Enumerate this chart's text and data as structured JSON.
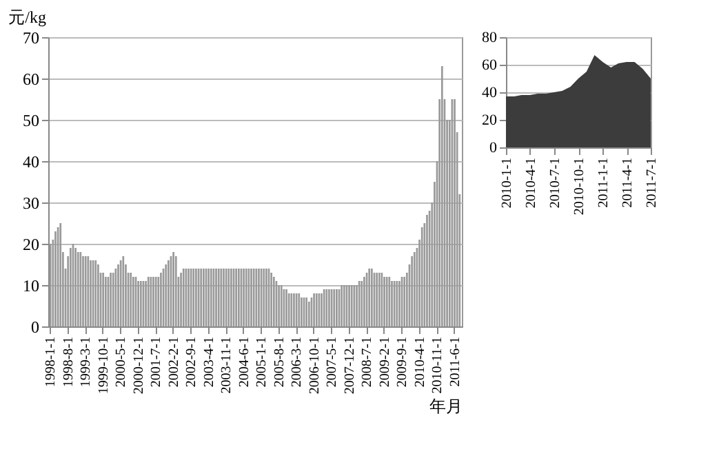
{
  "chart_data": [
    {
      "type": "bar",
      "ylabel": "元/kg",
      "xlabel": "年月",
      "color": "#9a9a9a",
      "ylim": [
        0,
        70
      ],
      "yticks": [
        0,
        10,
        20,
        30,
        40,
        50,
        60,
        70
      ],
      "grid": "y",
      "categories": [
        "1998-1-1",
        null,
        null,
        null,
        null,
        null,
        null,
        "1998-8-1",
        null,
        null,
        null,
        null,
        null,
        null,
        "1999-3-1",
        null,
        null,
        null,
        null,
        null,
        null,
        "1999-10-1",
        null,
        null,
        null,
        null,
        null,
        null,
        "2000-5-1",
        null,
        null,
        null,
        null,
        null,
        null,
        "2000-12-1",
        null,
        null,
        null,
        null,
        null,
        null,
        "2001-7-1",
        null,
        null,
        null,
        null,
        null,
        null,
        "2002-2-1",
        null,
        null,
        null,
        null,
        null,
        null,
        "2002-9-1",
        null,
        null,
        null,
        null,
        null,
        null,
        "2003-4-1",
        null,
        null,
        null,
        null,
        null,
        null,
        "2003-11-1",
        null,
        null,
        null,
        null,
        null,
        null,
        "2004-6-1",
        null,
        null,
        null,
        null,
        null,
        null,
        "2005-1-1",
        null,
        null,
        null,
        null,
        null,
        null,
        "2005-8-1",
        null,
        null,
        null,
        null,
        null,
        null,
        "2006-3-1",
        null,
        null,
        null,
        null,
        null,
        null,
        "2006-10-1",
        null,
        null,
        null,
        null,
        null,
        null,
        "2007-5-1",
        null,
        null,
        null,
        null,
        null,
        null,
        "2007-12-1",
        null,
        null,
        null,
        null,
        null,
        null,
        "2008-7-1",
        null,
        null,
        null,
        null,
        null,
        null,
        "2009-2-1",
        null,
        null,
        null,
        null,
        null,
        null,
        "2009-9-1",
        null,
        null,
        null,
        null,
        null,
        null,
        "2010-4-1",
        null,
        null,
        null,
        null,
        null,
        null,
        "2010-11-1",
        null,
        null,
        null,
        null,
        null,
        null,
        "2011-6-1",
        null,
        null
      ],
      "values": [
        20,
        21,
        23,
        24,
        25,
        18,
        14,
        17,
        19,
        20,
        19,
        18,
        18,
        17,
        17,
        17,
        16,
        16,
        16,
        15,
        13,
        13,
        12,
        12,
        13,
        13,
        14,
        15,
        16,
        17,
        15,
        13,
        13,
        12,
        12,
        11,
        11,
        11,
        11,
        12,
        12,
        12,
        12,
        12,
        13,
        14,
        15,
        16,
        17,
        18,
        17,
        12,
        13,
        14,
        14,
        14,
        14,
        14,
        14,
        14,
        14,
        14,
        14,
        14,
        14,
        14,
        14,
        14,
        14,
        14,
        14,
        14,
        14,
        14,
        14,
        14,
        14,
        14,
        14,
        14,
        14,
        14,
        14,
        14,
        14,
        14,
        14,
        14,
        13,
        12,
        11,
        10,
        10,
        9,
        9,
        8,
        8,
        8,
        8,
        8,
        7,
        7,
        7,
        6,
        7,
        8,
        8,
        8,
        8,
        9,
        9,
        9,
        9,
        9,
        9,
        9,
        10,
        10,
        10,
        10,
        10,
        10,
        10,
        11,
        11,
        12,
        13,
        14,
        14,
        13,
        13,
        13,
        13,
        12,
        12,
        12,
        11,
        11,
        11,
        11,
        12,
        12,
        13,
        15,
        17,
        18,
        19,
        21,
        24,
        25,
        27,
        28,
        30,
        35,
        40,
        55,
        63,
        55,
        50,
        50,
        55,
        55,
        47,
        32
      ]
    },
    {
      "type": "area",
      "color": "#3c3c3c",
      "ylim": [
        0,
        80
      ],
      "yticks": [
        0,
        20,
        40,
        60,
        80
      ],
      "grid": "y",
      "x": [
        "2010-01",
        "2010-02",
        "2010-03",
        "2010-04",
        "2010-05",
        "2010-06",
        "2010-07",
        "2010-08",
        "2010-09",
        "2010-10",
        "2010-11",
        "2010-12",
        "2011-01",
        "2011-02",
        "2011-03",
        "2011-04",
        "2011-05",
        "2011-06",
        "2011-07"
      ],
      "values": [
        37,
        37,
        38,
        38,
        39,
        39,
        40,
        41,
        44,
        50,
        55,
        67,
        62,
        58,
        61,
        62,
        62,
        57,
        50
      ],
      "xlim": [
        "2010-01",
        "2011-07"
      ],
      "xticks": [
        {
          "value": "2010-01",
          "label": "2010-1-1"
        },
        {
          "value": "2010-04",
          "label": "2010-4-1"
        },
        {
          "value": "2010-07",
          "label": "2010-7-1"
        },
        {
          "value": "2010-10",
          "label": "2010-10-1"
        },
        {
          "value": "2011-01",
          "label": "2011-1-1"
        },
        {
          "value": "2011-04",
          "label": "2011-4-1"
        },
        {
          "value": "2011-07",
          "label": "2011-7-1"
        }
      ]
    }
  ]
}
